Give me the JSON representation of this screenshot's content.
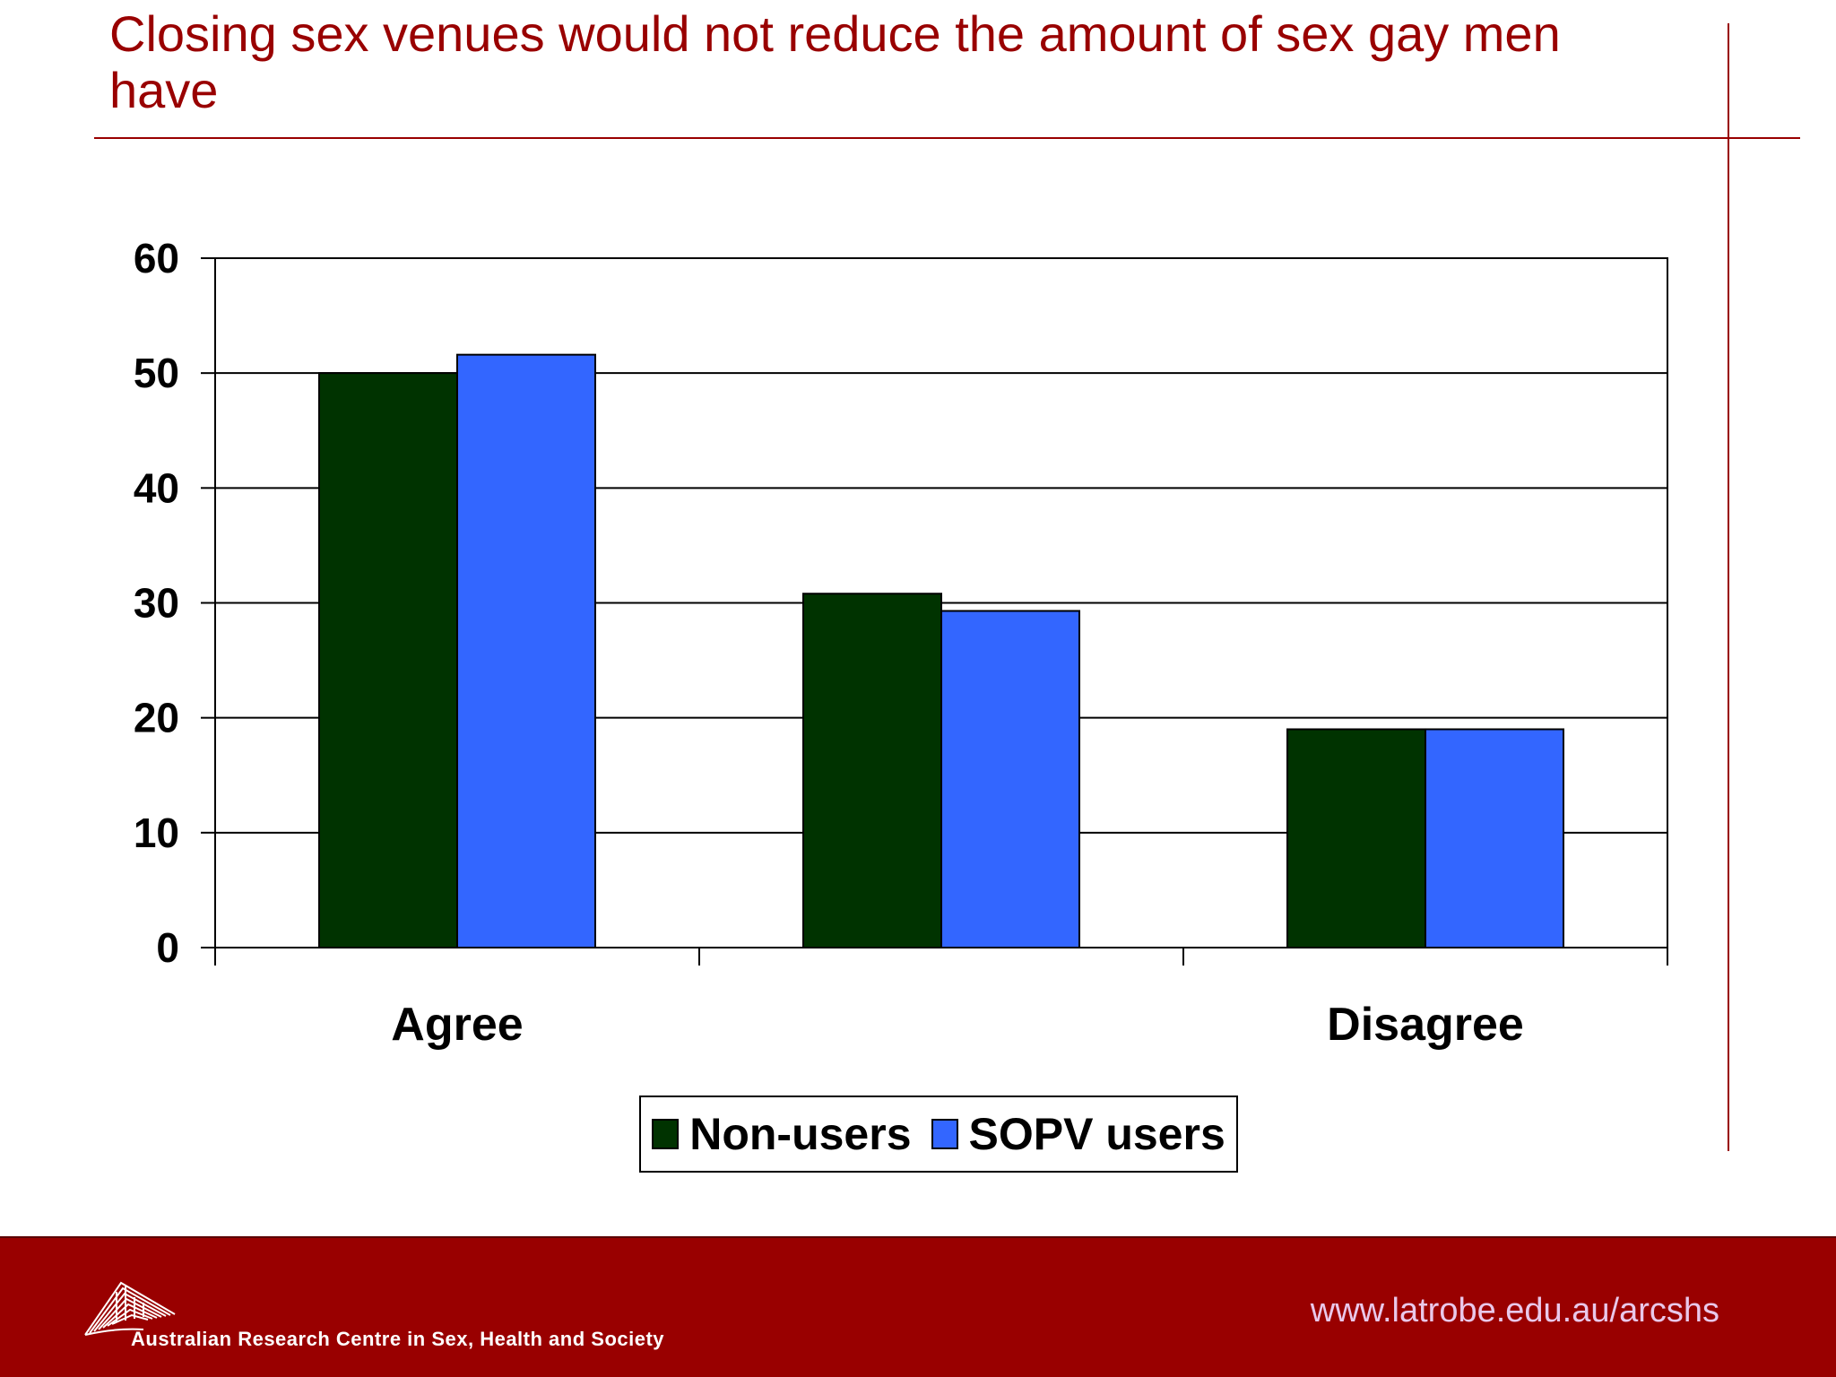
{
  "slide": {
    "title": "Closing sex venues would not reduce the amount of sex gay men have"
  },
  "chart_data": {
    "type": "bar",
    "title": "",
    "xlabel": "",
    "ylabel": "",
    "categories": [
      "Agree",
      "",
      "Disagree"
    ],
    "ylim": [
      0,
      60
    ],
    "yticks": [
      0,
      10,
      20,
      30,
      40,
      50,
      60
    ],
    "grid": true,
    "legend_position": "bottom",
    "series": [
      {
        "name": "Non-users",
        "values": [
          50,
          30.8,
          19
        ],
        "color": "#003300"
      },
      {
        "name": "SOPV users",
        "values": [
          51.6,
          29.3,
          19
        ],
        "color": "#3366ff"
      }
    ]
  },
  "footer": {
    "organization": "Australian Research Centre in Sex, Health and Society",
    "url": "www.latrobe.edu.au/arcshs"
  },
  "colors": {
    "brand": "#990000",
    "url_text": "#e9c8ea"
  }
}
